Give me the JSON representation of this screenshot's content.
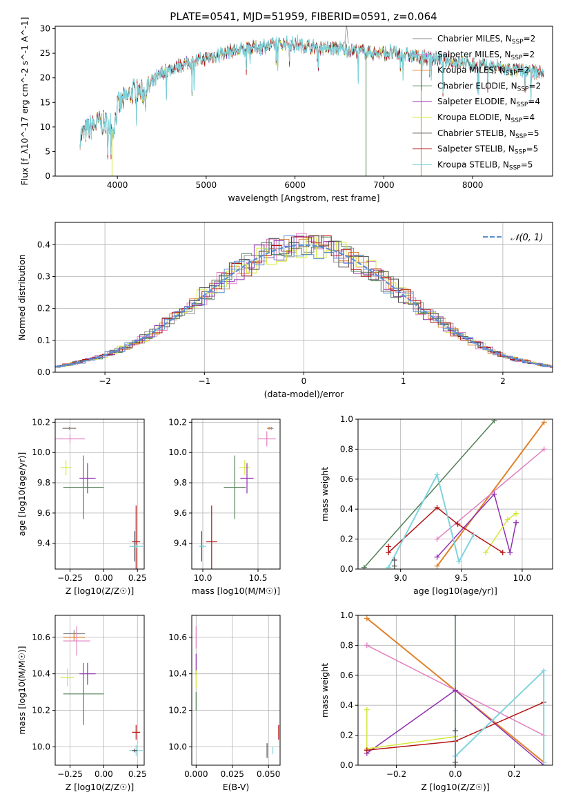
{
  "title": "PLATE=0541, MJD=51959, FIBERID=0591, z=0.064",
  "colors": {
    "chabrier_miles": "#8a8a8a",
    "salpeter_miles": "#e17fbf",
    "kroupa_miles": "#e0812b",
    "chabrier_elodie": "#4f7f55",
    "salpeter_elodie": "#9030b0",
    "kroupa_elodie": "#d4e83a",
    "chabrier_stelib": "#4a4a4a",
    "salpeter_stelib": "#b41414",
    "kroupa_stelib": "#7fd4dc",
    "normal": "#5b8fd6"
  },
  "chart_data": [
    {
      "id": "spectrum",
      "type": "line",
      "xlabel": "wavelength [Angstrom, rest frame]",
      "ylabel": "Flux [f_λ10^-17 erg cm^-2 s^-1 A^-1]",
      "xlim": [
        3300,
        8900
      ],
      "ylim": [
        0,
        30.5
      ],
      "xticks": [
        "4000",
        "5000",
        "6000",
        "7000",
        "8000"
      ],
      "yticks": [
        "0",
        "5",
        "10",
        "15",
        "20",
        "25",
        "30"
      ],
      "legend_position": "right",
      "legend": [
        {
          "label": "Chabrier MILES, N",
          "sub": "SSP",
          "tail": "=2",
          "color": "chabrier_miles"
        },
        {
          "label": "Salpeter MILES, N",
          "sub": "SSP",
          "tail": "=2",
          "color": "salpeter_miles"
        },
        {
          "label": "Kroupa MILES, N",
          "sub": "SSP",
          "tail": "=2",
          "color": "kroupa_miles"
        },
        {
          "label": "Chabrier ELODIE, N",
          "sub": "SSP",
          "tail": "=2",
          "color": "chabrier_elodie"
        },
        {
          "label": "Salpeter ELODIE, N",
          "sub": "SSP",
          "tail": "=4",
          "color": "salpeter_elodie"
        },
        {
          "label": "Kroupa ELODIE, N",
          "sub": "SSP",
          "tail": "=4",
          "color": "kroupa_elodie"
        },
        {
          "label": "Chabrier STELIB, N",
          "sub": "SSP",
          "tail": "=5",
          "color": "chabrier_stelib"
        },
        {
          "label": "Salpeter STELIB, N",
          "sub": "SSP",
          "tail": "=5",
          "color": "salpeter_stelib"
        },
        {
          "label": "Kroupa STELIB, N",
          "sub": "SSP",
          "tail": "=5",
          "color": "kroupa_stelib"
        }
      ],
      "continuum": [
        [
          3580,
          8
        ],
        [
          3700,
          10
        ],
        [
          3800,
          11
        ],
        [
          3900,
          10.5
        ],
        [
          3950,
          9
        ],
        [
          4000,
          14
        ],
        [
          4100,
          16
        ],
        [
          4200,
          17.5
        ],
        [
          4300,
          17
        ],
        [
          4400,
          19
        ],
        [
          4500,
          21
        ],
        [
          4700,
          22.5
        ],
        [
          4900,
          23.5
        ],
        [
          5100,
          24.5
        ],
        [
          5300,
          25.5
        ],
        [
          5500,
          26
        ],
        [
          5700,
          26.5
        ],
        [
          5900,
          27
        ],
        [
          6100,
          26.5
        ],
        [
          6300,
          26
        ],
        [
          6500,
          26
        ],
        [
          6700,
          25.5
        ],
        [
          6900,
          25
        ],
        [
          7100,
          25
        ],
        [
          7300,
          24.5
        ],
        [
          7500,
          24
        ],
        [
          7700,
          23.5
        ],
        [
          7900,
          23
        ],
        [
          8100,
          22.5
        ],
        [
          8300,
          22
        ],
        [
          8500,
          21.5
        ],
        [
          8800,
          21
        ]
      ]
    },
    {
      "id": "residual_hist",
      "type": "histogram",
      "xlabel": "(data-model)/error",
      "ylabel": "Normed distribution",
      "xlim": [
        -2.5,
        2.5
      ],
      "ylim": [
        0,
        0.47
      ],
      "xticks": [
        "−2",
        "−1",
        "0",
        "1",
        "2"
      ],
      "yticks": [
        "0.0",
        "0.1",
        "0.2",
        "0.3",
        "0.4"
      ],
      "legend_label": "𝒩(0, 1)",
      "legend_position": "top-right"
    },
    {
      "id": "age_vs_Z",
      "type": "scatter",
      "xlabel": "Z [log10(Z/Z☉)]",
      "ylabel": "age [log10(age/yr)]",
      "xlim": [
        -0.36,
        0.3
      ],
      "ylim": [
        9.23,
        10.22
      ],
      "xticks": [
        "−0.25",
        "0.00",
        "0.25"
      ],
      "yticks": [
        "9.4",
        "9.6",
        "9.8",
        "10.0",
        "10.2"
      ],
      "points": [
        {
          "color": "kroupa_miles",
          "x": -0.255,
          "y": 10.16,
          "xe": 0.05,
          "ye": 0.01
        },
        {
          "color": "chabrier_miles",
          "x": -0.255,
          "y": 10.16,
          "xe": 0.05,
          "ye": 0.01
        },
        {
          "color": "salpeter_miles",
          "x": -0.25,
          "y": 10.09,
          "xe": 0.11,
          "ye": 0.03
        },
        {
          "color": "kroupa_elodie",
          "x": -0.28,
          "y": 9.9,
          "xe": 0.04,
          "ye": 0.05
        },
        {
          "color": "salpeter_elodie",
          "x": -0.12,
          "y": 9.83,
          "xe": 0.06,
          "ye": 0.1
        },
        {
          "color": "chabrier_elodie",
          "x": -0.15,
          "y": 9.77,
          "xe": 0.15,
          "ye": 0.21
        },
        {
          "color": "salpeter_stelib",
          "x": 0.24,
          "y": 9.41,
          "xe": 0.03,
          "ye": 0.24
        },
        {
          "color": "chabrier_stelib",
          "x": 0.23,
          "y": 9.38,
          "xe": 0.02,
          "ye": 0.1
        },
        {
          "color": "kroupa_stelib",
          "x": 0.24,
          "y": 9.38,
          "xe": 0.05,
          "ye": 0.01
        }
      ]
    },
    {
      "id": "age_vs_mass",
      "type": "scatter",
      "xlabel": "mass [log10(M/M☉)]",
      "ylabel": "",
      "xlim": [
        9.9,
        10.7
      ],
      "ylim": [
        9.23,
        10.22
      ],
      "xticks": [
        "10.0",
        "10.5"
      ],
      "yticks": [
        "9.4",
        "9.6",
        "9.8",
        "10.0",
        "10.2"
      ],
      "points": [
        {
          "color": "kroupa_miles",
          "x": 10.6,
          "y": 10.16,
          "xe": 0.02,
          "ye": 0.01
        },
        {
          "color": "chabrier_miles",
          "x": 10.62,
          "y": 10.16,
          "xe": 0.02,
          "ye": 0.01
        },
        {
          "color": "salpeter_miles",
          "x": 10.58,
          "y": 10.09,
          "xe": 0.08,
          "ye": 0.05
        },
        {
          "color": "kroupa_elodie",
          "x": 10.38,
          "y": 9.9,
          "xe": 0.05,
          "ye": 0.05
        },
        {
          "color": "salpeter_elodie",
          "x": 10.4,
          "y": 9.83,
          "xe": 0.06,
          "ye": 0.1
        },
        {
          "color": "chabrier_elodie",
          "x": 10.29,
          "y": 9.77,
          "xe": 0.1,
          "ye": 0.21
        },
        {
          "color": "salpeter_stelib",
          "x": 10.08,
          "y": 9.41,
          "xe": 0.05,
          "ye": 0.24
        },
        {
          "color": "chabrier_stelib",
          "x": 9.99,
          "y": 9.38,
          "xe": 0.02,
          "ye": 0.1
        },
        {
          "color": "kroupa_stelib",
          "x": 10.0,
          "y": 9.38,
          "xe": 0.03,
          "ye": 0.01
        }
      ]
    },
    {
      "id": "weight_vs_age",
      "type": "line",
      "xlabel": "age [log10(age/yr)]",
      "ylabel": "mass weight",
      "xlim": [
        8.65,
        10.25
      ],
      "ylim": [
        0,
        1
      ],
      "xticks": [
        "9.0",
        "9.5",
        "10.0"
      ],
      "yticks": [
        "0.0",
        "0.2",
        "0.4",
        "0.6",
        "0.8",
        "1.0"
      ],
      "series": [
        {
          "color": "chabrier_elodie",
          "width": 1.5,
          "x": [
            8.7,
            9.77
          ],
          "y": [
            0.01,
            0.99
          ]
        },
        {
          "color": "kroupa_miles",
          "width": 2,
          "x": [
            9.3,
            10.18
          ],
          "y": [
            0.02,
            0.98
          ]
        },
        {
          "color": "salpeter_miles",
          "width": 1.5,
          "x": [
            9.3,
            10.18
          ],
          "y": [
            0.2,
            0.8
          ]
        },
        {
          "color": "salpeter_elodie",
          "width": 1.5,
          "x": [
            9.3,
            9.77,
            9.9,
            9.95
          ],
          "y": [
            0.08,
            0.5,
            0.11,
            0.31
          ]
        },
        {
          "color": "kroupa_elodie",
          "width": 1.5,
          "x": [
            9.7,
            9.88,
            9.95
          ],
          "y": [
            0.11,
            0.33,
            0.37
          ]
        },
        {
          "color": "salpeter_stelib",
          "width": 1.5,
          "x": [
            8.9,
            8.9,
            9.3,
            9.47,
            9.84
          ],
          "y": [
            0.15,
            0.11,
            0.41,
            0.3,
            0.11
          ]
        },
        {
          "color": "kroupa_stelib",
          "width": 2,
          "x": [
            8.9,
            9.3,
            9.48,
            9.6
          ],
          "y": [
            0.01,
            0.63,
            0.05,
            0.23
          ]
        },
        {
          "color": "chabrier_stelib",
          "width": 1,
          "x": [
            8.95,
            8.95
          ],
          "y": [
            0.02,
            0.06
          ]
        }
      ]
    },
    {
      "id": "mass_vs_Z",
      "type": "scatter",
      "xlabel": "Z [log10(Z/Z☉)]",
      "ylabel": "mass [log10(M/M☉)]",
      "xlim": [
        -0.36,
        0.3
      ],
      "ylim": [
        9.9,
        10.72
      ],
      "xticks": [
        "−0.25",
        "0.00",
        "0.25"
      ],
      "yticks": [
        "10.0",
        "10.2",
        "10.4",
        "10.6"
      ],
      "points": [
        {
          "color": "chabrier_miles",
          "x": -0.22,
          "y": 10.62,
          "xe": 0.08,
          "ye": 0.02
        },
        {
          "color": "kroupa_miles",
          "x": -0.22,
          "y": 10.6,
          "xe": 0.08,
          "ye": 0.02
        },
        {
          "color": "salpeter_miles",
          "x": -0.2,
          "y": 10.58,
          "xe": 0.1,
          "ye": 0.08
        },
        {
          "color": "salpeter_elodie",
          "x": -0.12,
          "y": 10.4,
          "xe": 0.06,
          "ye": 0.06
        },
        {
          "color": "kroupa_elodie",
          "x": -0.27,
          "y": 10.38,
          "xe": 0.05,
          "ye": 0.05
        },
        {
          "color": "chabrier_elodie",
          "x": -0.15,
          "y": 10.29,
          "xe": 0.15,
          "ye": 0.17
        },
        {
          "color": "salpeter_stelib",
          "x": 0.24,
          "y": 10.08,
          "xe": 0.03,
          "ye": 0.04
        },
        {
          "color": "kroupa_stelib",
          "x": 0.24,
          "y": 9.98,
          "xe": 0.05,
          "ye": 0.03
        },
        {
          "color": "chabrier_stelib",
          "x": 0.23,
          "y": 9.98,
          "xe": 0.02,
          "ye": 0.01
        }
      ]
    },
    {
      "id": "mass_vs_ebv",
      "type": "scatter",
      "xlabel": "E(B-V)",
      "ylabel": "",
      "xlim": [
        -0.003,
        0.058
      ],
      "ylim": [
        9.9,
        10.72
      ],
      "xticks": [
        "0.000",
        "0.025",
        "0.050"
      ],
      "yticks": [
        "10.0",
        "10.2",
        "10.4",
        "10.6"
      ],
      "points": [
        {
          "color": "salpeter_miles",
          "x": 0.0,
          "y": 10.6,
          "xe": 0.0,
          "ye": 0.06
        },
        {
          "color": "salpeter_elodie",
          "x": 0.0,
          "y": 10.45,
          "xe": 0.0,
          "ye": 0.06
        },
        {
          "color": "kroupa_elodie",
          "x": 0.0,
          "y": 10.37,
          "xe": 0.0,
          "ye": 0.05
        },
        {
          "color": "chabrier_elodie",
          "x": 0.0,
          "y": 10.25,
          "xe": 0.0,
          "ye": 0.05
        },
        {
          "color": "salpeter_stelib",
          "x": 0.057,
          "y": 10.08,
          "xe": 0.0,
          "ye": 0.04
        },
        {
          "color": "chabrier_stelib",
          "x": 0.049,
          "y": 9.98,
          "xe": 0.0,
          "ye": 0.04
        },
        {
          "color": "kroupa_stelib",
          "x": 0.053,
          "y": 9.98,
          "xe": 0.0,
          "ye": 0.02
        }
      ]
    },
    {
      "id": "weight_vs_Z",
      "type": "line",
      "xlabel": "Z [log10(Z/Z☉)]",
      "ylabel": "mass weight",
      "xlim": [
        -0.33,
        0.33
      ],
      "ylim": [
        0,
        1
      ],
      "xticks": [
        "−0.2",
        "0.0",
        "0.2"
      ],
      "yticks": [
        "0.0",
        "0.2",
        "0.4",
        "0.6",
        "0.8",
        "1.0"
      ],
      "series": [
        {
          "color": "kroupa_miles",
          "width": 2,
          "x": [
            -0.3,
            0.3
          ],
          "y": [
            0.98,
            0.02
          ]
        },
        {
          "color": "salpeter_miles",
          "width": 1.5,
          "x": [
            -0.3,
            0.3
          ],
          "y": [
            0.8,
            0.2
          ]
        },
        {
          "color": "chabrier_elodie",
          "width": 1.5,
          "x": [
            0.0,
            0.0
          ],
          "y": [
            0.0,
            1.0
          ]
        },
        {
          "color": "salpeter_elodie",
          "width": 1.5,
          "x": [
            -0.3,
            0.0,
            0.3
          ],
          "y": [
            0.08,
            0.5,
            0.0
          ]
        },
        {
          "color": "kroupa_elodie",
          "width": 1.5,
          "x": [
            -0.3,
            -0.3,
            0.0
          ],
          "y": [
            0.37,
            0.11,
            0.19
          ]
        },
        {
          "color": "salpeter_stelib",
          "width": 1.5,
          "x": [
            -0.3,
            0.0,
            0.3
          ],
          "y": [
            0.1,
            0.16,
            0.42
          ]
        },
        {
          "color": "kroupa_stelib",
          "width": 2,
          "x": [
            0.0,
            0.0,
            0.3,
            0.3
          ],
          "y": [
            0.23,
            0.06,
            0.63,
            0.02
          ]
        },
        {
          "color": "chabrier_stelib",
          "width": 1,
          "x": [
            0.0,
            0.0
          ],
          "y": [
            0.02,
            0.23
          ]
        }
      ]
    }
  ]
}
